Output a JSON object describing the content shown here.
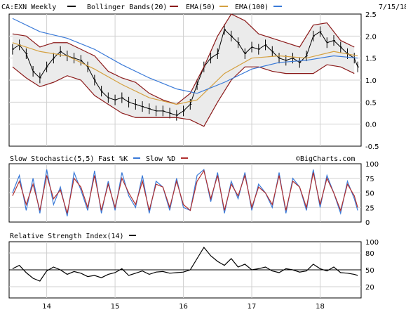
{
  "header": {
    "symbol_label": "CA:EXN Weekly",
    "bb_label": "Bollinger Bands(20)",
    "ema50_label": "EMA(50)",
    "ema100_label": "EMA(100)",
    "date": "7/15/18"
  },
  "stoch_header": {
    "title": "Slow Stochastic(5,5)",
    "fast_label": "Fast %K",
    "slow_label": "Slow %D",
    "watermark": "©BigCharts.com"
  },
  "rsi_header": {
    "title": "Relative Strength Index(14)"
  },
  "colors": {
    "price": "#000000",
    "bollinger": "#8b1a1a",
    "ema50": "#d4a040",
    "ema100": "#3a7ad8",
    "fast_k": "#3a7ad8",
    "slow_d": "#b03030",
    "background": "#ffffff",
    "grid": "#d0d0d0",
    "band_fill": "#ebebeb"
  },
  "chart_data": [
    {
      "type": "line",
      "panel": "price",
      "ylim": [
        -0.5,
        2.5
      ],
      "y_ticks": [
        "2.5",
        "2.0",
        "1.5",
        "1.0",
        "0.5",
        "0.0",
        "-0.5"
      ],
      "x_ticks": [
        "14",
        "15",
        "16",
        "17",
        "18"
      ],
      "series": [
        {
          "name": "CA:EXN Weekly",
          "x": [
            13.5,
            13.6,
            13.7,
            13.8,
            13.9,
            14.0,
            14.1,
            14.2,
            14.3,
            14.4,
            14.5,
            14.6,
            14.7,
            14.8,
            14.9,
            15.0,
            15.1,
            15.2,
            15.3,
            15.4,
            15.5,
            15.6,
            15.7,
            15.8,
            15.9,
            16.0,
            16.1,
            16.2,
            16.3,
            16.4,
            16.5,
            16.6,
            16.7,
            16.8,
            16.9,
            17.0,
            17.1,
            17.2,
            17.3,
            17.4,
            17.5,
            17.6,
            17.7,
            17.8,
            17.9,
            18.0,
            18.1,
            18.2,
            18.3,
            18.4,
            18.5,
            18.55
          ],
          "values": [
            1.7,
            1.8,
            1.6,
            1.2,
            1.05,
            1.3,
            1.5,
            1.65,
            1.55,
            1.5,
            1.45,
            1.3,
            1.0,
            0.75,
            0.6,
            0.55,
            0.6,
            0.5,
            0.45,
            0.4,
            0.35,
            0.3,
            0.3,
            0.25,
            0.2,
            0.3,
            0.45,
            0.9,
            1.3,
            1.5,
            1.6,
            2.15,
            2.0,
            1.85,
            1.6,
            1.75,
            1.7,
            1.8,
            1.65,
            1.5,
            1.45,
            1.5,
            1.4,
            1.55,
            2.0,
            2.1,
            1.85,
            1.9,
            1.75,
            1.6,
            1.5,
            1.3
          ]
        },
        {
          "name": "Bollinger Bands(20) upper",
          "x": [
            13.5,
            13.7,
            13.9,
            14.1,
            14.3,
            14.5,
            14.7,
            14.9,
            15.1,
            15.3,
            15.5,
            15.7,
            15.9,
            16.1,
            16.3,
            16.5,
            16.7,
            16.9,
            17.1,
            17.3,
            17.5,
            17.7,
            17.9,
            18.1,
            18.3,
            18.5
          ],
          "values": [
            2.05,
            2.0,
            1.75,
            1.85,
            1.85,
            1.7,
            1.55,
            1.2,
            1.05,
            0.95,
            0.7,
            0.55,
            0.45,
            0.7,
            1.3,
            2.0,
            2.5,
            2.35,
            2.05,
            1.95,
            1.85,
            1.75,
            2.25,
            2.3,
            1.9,
            1.75
          ]
        },
        {
          "name": "Bollinger Bands(20) lower",
          "x": [
            13.5,
            13.7,
            13.9,
            14.1,
            14.3,
            14.5,
            14.7,
            14.9,
            15.1,
            15.3,
            15.5,
            15.7,
            15.9,
            16.1,
            16.3,
            16.5,
            16.7,
            16.9,
            17.1,
            17.3,
            17.5,
            17.7,
            17.9,
            18.1,
            18.3,
            18.5
          ],
          "values": [
            1.3,
            1.05,
            0.85,
            0.95,
            1.1,
            1.0,
            0.65,
            0.45,
            0.25,
            0.15,
            0.15,
            0.15,
            0.15,
            0.1,
            -0.05,
            0.5,
            1.0,
            1.3,
            1.3,
            1.2,
            1.15,
            1.15,
            1.15,
            1.35,
            1.3,
            1.15
          ]
        },
        {
          "name": "EMA(50)",
          "x": [
            13.5,
            13.9,
            14.3,
            14.7,
            15.1,
            15.5,
            15.9,
            16.2,
            16.6,
            17.0,
            17.4,
            17.8,
            18.2,
            18.55
          ],
          "values": [
            1.85,
            1.65,
            1.55,
            1.25,
            0.9,
            0.6,
            0.45,
            0.55,
            1.15,
            1.5,
            1.55,
            1.5,
            1.65,
            1.55
          ]
        },
        {
          "name": "EMA(100)",
          "x": [
            13.5,
            13.9,
            14.3,
            14.7,
            15.1,
            15.5,
            15.9,
            16.2,
            16.6,
            17.0,
            17.4,
            17.8,
            18.2,
            18.55
          ],
          "values": [
            2.4,
            2.1,
            1.95,
            1.7,
            1.35,
            1.05,
            0.8,
            0.7,
            0.95,
            1.25,
            1.4,
            1.45,
            1.55,
            1.5
          ]
        }
      ]
    },
    {
      "type": "line",
      "panel": "stochastic",
      "ylim": [
        0,
        100
      ],
      "y_ticks": [
        "100",
        "75",
        "50",
        "25",
        "0"
      ],
      "series": [
        {
          "name": "Fast %K",
          "x": [
            13.5,
            13.6,
            13.7,
            13.8,
            13.9,
            14.0,
            14.1,
            14.2,
            14.3,
            14.4,
            14.5,
            14.6,
            14.7,
            14.8,
            14.9,
            15.0,
            15.1,
            15.2,
            15.3,
            15.4,
            15.5,
            15.6,
            15.7,
            15.8,
            15.9,
            16.0,
            16.1,
            16.2,
            16.3,
            16.4,
            16.5,
            16.6,
            16.7,
            16.8,
            16.9,
            17.0,
            17.1,
            17.2,
            17.3,
            17.4,
            17.5,
            17.6,
            17.7,
            17.8,
            17.9,
            18.0,
            18.1,
            18.2,
            18.3,
            18.4,
            18.5,
            18.55
          ],
          "values": [
            50,
            80,
            20,
            75,
            15,
            90,
            30,
            60,
            10,
            85,
            55,
            20,
            88,
            15,
            70,
            20,
            85,
            45,
            25,
            80,
            15,
            70,
            60,
            20,
            75,
            25,
            20,
            80,
            90,
            35,
            85,
            15,
            70,
            40,
            85,
            20,
            65,
            50,
            25,
            85,
            15,
            75,
            60,
            20,
            90,
            25,
            80,
            50,
            15,
            70,
            40,
            20
          ]
        },
        {
          "name": "Slow %D",
          "x": [
            13.5,
            13.6,
            13.7,
            13.8,
            13.9,
            14.0,
            14.1,
            14.2,
            14.3,
            14.4,
            14.5,
            14.6,
            14.7,
            14.8,
            14.9,
            15.0,
            15.1,
            15.2,
            15.3,
            15.4,
            15.5,
            15.6,
            15.7,
            15.8,
            15.9,
            16.0,
            16.1,
            16.2,
            16.3,
            16.4,
            16.5,
            16.6,
            16.7,
            16.8,
            16.9,
            17.0,
            17.1,
            17.2,
            17.3,
            17.4,
            17.5,
            17.6,
            17.7,
            17.8,
            17.9,
            18.0,
            18.1,
            18.2,
            18.3,
            18.4,
            18.5,
            18.55
          ],
          "values": [
            45,
            70,
            30,
            65,
            20,
            80,
            40,
            55,
            15,
            75,
            60,
            25,
            80,
            20,
            65,
            25,
            75,
            50,
            30,
            70,
            20,
            65,
            60,
            25,
            70,
            30,
            20,
            70,
            88,
            40,
            80,
            20,
            65,
            45,
            80,
            25,
            60,
            50,
            30,
            80,
            20,
            70,
            60,
            25,
            85,
            30,
            75,
            50,
            20,
            65,
            45,
            25
          ]
        }
      ]
    },
    {
      "type": "line",
      "panel": "rsi",
      "ylim": [
        0,
        100
      ],
      "y_ticks": [
        "100",
        "80",
        "50",
        "20"
      ],
      "reference_line": 50,
      "series": [
        {
          "name": "Relative Strength Index(14)",
          "x": [
            13.5,
            13.6,
            13.7,
            13.8,
            13.9,
            14.0,
            14.1,
            14.2,
            14.3,
            14.4,
            14.5,
            14.6,
            14.7,
            14.8,
            14.9,
            15.0,
            15.1,
            15.2,
            15.3,
            15.4,
            15.5,
            15.6,
            15.7,
            15.8,
            15.9,
            16.0,
            16.1,
            16.2,
            16.3,
            16.4,
            16.5,
            16.6,
            16.7,
            16.8,
            16.9,
            17.0,
            17.1,
            17.2,
            17.3,
            17.4,
            17.5,
            17.6,
            17.7,
            17.8,
            17.9,
            18.0,
            18.1,
            18.2,
            18.3,
            18.4,
            18.5,
            18.55
          ],
          "values": [
            52,
            58,
            45,
            35,
            30,
            48,
            55,
            50,
            42,
            47,
            44,
            38,
            40,
            36,
            42,
            45,
            52,
            40,
            44,
            48,
            42,
            46,
            47,
            44,
            45,
            46,
            50,
            70,
            90,
            75,
            65,
            58,
            70,
            55,
            60,
            50,
            52,
            55,
            48,
            45,
            52,
            50,
            46,
            48,
            60,
            52,
            48,
            55,
            45,
            44,
            42,
            40
          ]
        }
      ]
    }
  ]
}
